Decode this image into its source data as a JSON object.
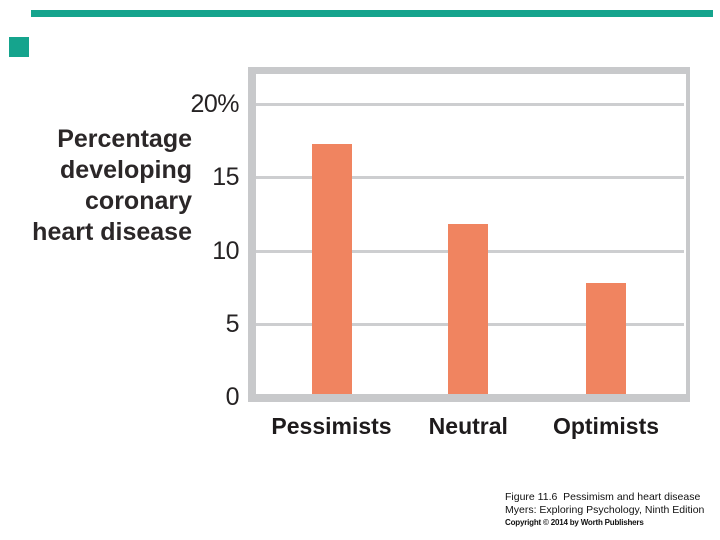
{
  "slide": {
    "accent_color": "#15a48d"
  },
  "colors": {
    "bar_fill": "#f08460",
    "frame_gray": "#c8c9cb",
    "gridline_gray": "#cdced0",
    "text": "#262324",
    "caption_text": "#111111"
  },
  "chart_data": {
    "type": "bar",
    "title": "",
    "categories": [
      "Pessimists",
      "Neutral",
      "Optimists"
    ],
    "values": [
      17.3,
      11.8,
      7.8
    ],
    "ylabel": "Percentage developing coronary heart disease",
    "ylabel_lines": [
      "Percentage",
      "developing",
      "coronary",
      "heart disease"
    ],
    "yticks": [
      {
        "value": 0,
        "label": "0"
      },
      {
        "value": 5,
        "label": "5"
      },
      {
        "value": 10,
        "label": "10"
      },
      {
        "value": 15,
        "label": "15"
      },
      {
        "value": 20,
        "label": "20%"
      }
    ],
    "ylim": [
      0,
      22
    ],
    "xlabel": "",
    "grid": true,
    "legend_position": "none",
    "bar_color": "#f08460"
  },
  "caption": {
    "lines": [
      "Figure 11.6  Pessimism and heart disease",
      "Myers: Exploring Psychology, Ninth Edition",
      "Copyright © 2014 by Worth Publishers"
    ]
  }
}
